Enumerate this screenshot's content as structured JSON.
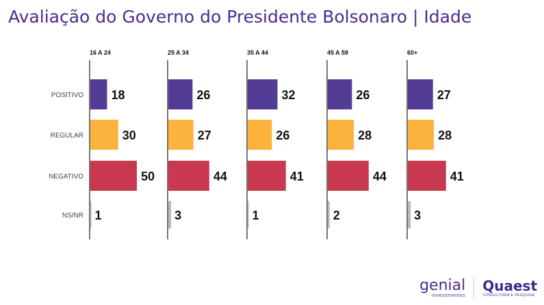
{
  "header": {
    "title": "Avaliação do Governo do Presidente Bolsonaro | Idade"
  },
  "logos": {
    "genial": "genial",
    "genial_sub": "investimentos",
    "quaest": "Quaest",
    "quaest_sub": "CONSULTORIA E PESQUISA"
  },
  "colors": {
    "positivo": "#523c96",
    "regular": "#fbb33d",
    "negativo": "#c8384f",
    "nsnr": "#b9b9b9",
    "title": "#4b2a91"
  },
  "chart_data": {
    "type": "bar",
    "orientation": "horizontal",
    "title": "Avaliação do Governo do Presidente Bolsonaro | Idade",
    "categories": [
      "POSITIVO",
      "REGULAR",
      "NEGATIVO",
      "NS/NR"
    ],
    "panels": [
      {
        "name": "16 A 24",
        "values": [
          18,
          30,
          50,
          1
        ]
      },
      {
        "name": "25 A 34",
        "values": [
          26,
          27,
          44,
          3
        ]
      },
      {
        "name": "35 A 44",
        "values": [
          32,
          26,
          41,
          1
        ]
      },
      {
        "name": "45 A 59",
        "values": [
          26,
          28,
          44,
          2
        ]
      },
      {
        "name": "60+",
        "values": [
          27,
          28,
          41,
          3
        ]
      }
    ]
  }
}
